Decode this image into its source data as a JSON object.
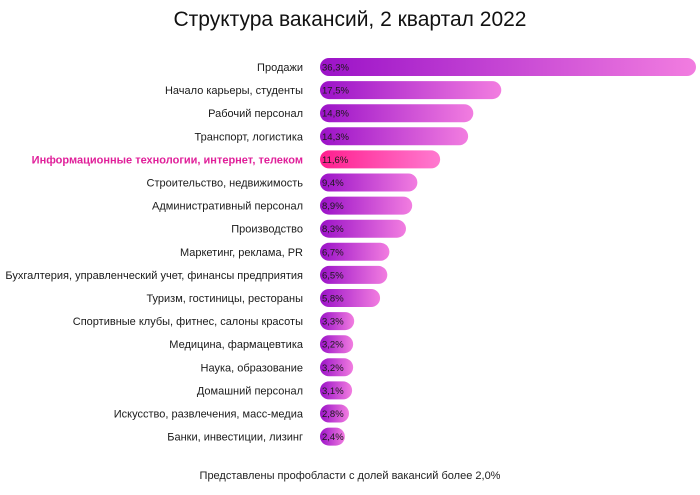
{
  "chart_data": {
    "type": "bar",
    "orientation": "horizontal",
    "title": "Структура вакансий, 2 квартал 2022",
    "note": "Представлены профобласти с долей вакансий более 2,0%",
    "highlight_index": 4,
    "categories": [
      "Продажи",
      "Начало карьеры, студенты",
      "Рабочий персонал",
      "Транспорт, логистика",
      "Информационные технологии, интернет, телеком",
      "Строительство, недвижимость",
      "Административный персонал",
      "Производство",
      "Маркетинг, реклама, PR",
      "Бухгалтерия, управленческий учет, финансы предприятия",
      "Туризм, гостиницы, рестораны",
      "Спортивные клубы, фитнес, салоны красоты",
      "Медицина, фармацевтика",
      "Наука, образование",
      "Домашний персонал",
      "Искусство, развлечения, масс-медиа",
      "Банки, инвестиции, лизинг"
    ],
    "values": [
      36.3,
      17.5,
      14.8,
      14.3,
      11.6,
      9.4,
      8.9,
      8.3,
      6.7,
      6.5,
      5.8,
      3.3,
      3.2,
      3.2,
      3.1,
      2.8,
      2.4
    ],
    "value_labels": [
      "36,3%",
      "17,5%",
      "14,8%",
      "14,3%",
      "11,6%",
      "9,4%",
      "8,9%",
      "8,3%",
      "6,7%",
      "6,5%",
      "5,8%",
      "3,3%",
      "3,2%",
      "3,2%",
      "3,1%",
      "2,8%",
      "2,4%"
    ],
    "unit": "%",
    "xlim": [
      0,
      36.3
    ],
    "grid": false,
    "legend": "none",
    "colors": {
      "bar_start": "#9b12c8",
      "bar_end": "#f27de0",
      "highlight_start": "#ff1f8e",
      "highlight_end": "#ff7ad0",
      "highlight_text": "#e0209a"
    }
  }
}
